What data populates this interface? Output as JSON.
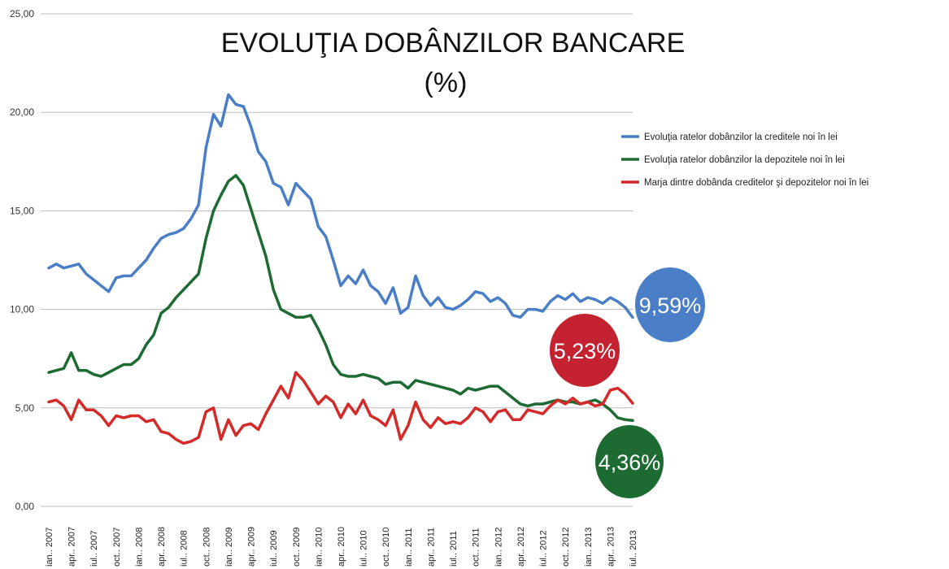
{
  "chart_data": {
    "type": "line",
    "title": "EVOLUŢIA DOBÂNZILOR BANCARE",
    "subtitle": "(%)",
    "xlabel": "",
    "ylabel": "",
    "ylim": [
      0,
      25
    ],
    "yticks": [
      "0,00",
      "5,00",
      "10,00",
      "15,00",
      "20,00",
      "25,00"
    ],
    "grid": "horizontal",
    "legend": "right",
    "x_tick_labels": [
      "ian.. 2007",
      "apr.. 2007",
      "iul.. 2007",
      "oct.. 2007",
      "ian.. 2008",
      "apr.. 2008",
      "iul.. 2008",
      "oct.. 2008",
      "ian.. 2009",
      "apr.. 2009",
      "iul.. 2009",
      "oct.. 2009",
      "ian.. 2010",
      "apr.. 2010",
      "iul.. 2010",
      "oct.. 2010",
      "ian.. 2011",
      "apr.. 2011",
      "iul.. 2011",
      "oct.. 2011",
      "ian.. 2012",
      "apr.. 2012",
      "iul.. 2012",
      "oct.. 2012",
      "ian.. 2013",
      "apr.. 2013",
      "iul.. 2013"
    ],
    "series": [
      {
        "name": "Evoluţia ratelor dobânzilor la creditele noi în lei",
        "color": "#4a7ec6",
        "final_label": "9,59%",
        "values": [
          12.1,
          12.3,
          12.1,
          12.2,
          12.3,
          11.8,
          11.5,
          11.2,
          10.9,
          11.6,
          11.7,
          11.7,
          12.1,
          12.5,
          13.1,
          13.6,
          13.8,
          13.9,
          14.1,
          14.6,
          15.3,
          18.2,
          19.9,
          19.3,
          20.9,
          20.4,
          20.3,
          19.3,
          18.0,
          17.5,
          16.4,
          16.2,
          15.3,
          16.4,
          16.0,
          15.6,
          14.2,
          13.7,
          12.5,
          11.2,
          11.7,
          11.3,
          12.0,
          11.2,
          10.9,
          10.3,
          11.1,
          9.8,
          10.1,
          11.7,
          10.7,
          10.2,
          10.6,
          10.1,
          10.0,
          10.2,
          10.5,
          10.9,
          10.8,
          10.4,
          10.6,
          10.3,
          9.7,
          9.6,
          10.0,
          10.0,
          9.9,
          10.4,
          10.7,
          10.5,
          10.8,
          10.4,
          10.6,
          10.5,
          10.3,
          10.6,
          10.4,
          10.1,
          9.59
        ]
      },
      {
        "name": "Evoluţia ratelor dobânzilor la depozitele noi în lei",
        "color": "#1d6b33",
        "final_label": "4,36%",
        "values": [
          6.8,
          6.9,
          7.0,
          7.8,
          6.9,
          6.9,
          6.7,
          6.6,
          6.8,
          7.0,
          7.2,
          7.2,
          7.5,
          8.2,
          8.7,
          9.8,
          10.1,
          10.6,
          11.0,
          11.4,
          11.8,
          13.6,
          15.0,
          15.8,
          16.5,
          16.8,
          16.3,
          15.1,
          13.9,
          12.7,
          11.0,
          10.0,
          9.8,
          9.6,
          9.6,
          9.7,
          9.0,
          8.2,
          7.2,
          6.7,
          6.6,
          6.6,
          6.7,
          6.6,
          6.5,
          6.2,
          6.3,
          6.3,
          6.0,
          6.4,
          6.3,
          6.2,
          6.1,
          6.0,
          5.9,
          5.7,
          6.0,
          5.9,
          6.0,
          6.1,
          6.1,
          5.8,
          5.5,
          5.2,
          5.1,
          5.2,
          5.2,
          5.3,
          5.4,
          5.3,
          5.3,
          5.2,
          5.3,
          5.4,
          5.2,
          4.9,
          4.5,
          4.4,
          4.36
        ]
      },
      {
        "name": "Marja dintre dobânda creditelor şi depozitelor noi în lei",
        "color": "#d42a2a",
        "final_label": "5,23%",
        "values": [
          5.3,
          5.4,
          5.1,
          4.4,
          5.4,
          4.9,
          4.9,
          4.6,
          4.1,
          4.6,
          4.5,
          4.6,
          4.6,
          4.3,
          4.4,
          3.8,
          3.7,
          3.4,
          3.2,
          3.3,
          3.5,
          4.8,
          5.0,
          3.4,
          4.4,
          3.6,
          4.1,
          4.2,
          3.9,
          4.7,
          5.4,
          6.1,
          5.5,
          6.8,
          6.4,
          5.8,
          5.2,
          5.6,
          5.3,
          4.5,
          5.2,
          4.7,
          5.4,
          4.6,
          4.4,
          4.1,
          4.9,
          3.4,
          4.1,
          5.3,
          4.4,
          4.0,
          4.5,
          4.2,
          4.3,
          4.2,
          4.5,
          5.0,
          4.8,
          4.3,
          4.8,
          4.9,
          4.4,
          4.4,
          4.9,
          4.8,
          4.7,
          5.1,
          5.4,
          5.2,
          5.5,
          5.2,
          5.3,
          5.1,
          5.2,
          5.9,
          6.0,
          5.7,
          5.23
        ]
      }
    ]
  }
}
